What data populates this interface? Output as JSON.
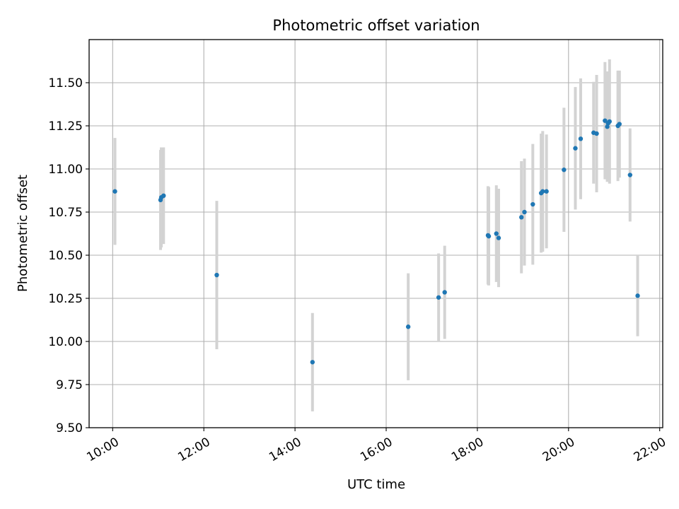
{
  "chart_data": {
    "type": "scatter",
    "title": "Photometric offset variation",
    "xlabel": "UTC time",
    "ylabel": "Photometric offset",
    "xlim": [
      "09:29",
      "22:04"
    ],
    "ylim": [
      9.5,
      11.75
    ],
    "x_ticks": [
      "10:00",
      "12:00",
      "14:00",
      "16:00",
      "18:00",
      "20:00",
      "22:00"
    ],
    "y_ticks": [
      "9.50",
      "9.75",
      "10.00",
      "10.25",
      "10.50",
      "10.75",
      "11.00",
      "11.25",
      "11.50"
    ],
    "grid": true,
    "legend": "none",
    "marker_color": "#1f77b4",
    "errorbar_color": "#d3d3d3",
    "points": [
      {
        "x": "10:03",
        "y": 10.87,
        "err": 0.31
      },
      {
        "x": "11:03",
        "y": 10.82,
        "err": 0.29
      },
      {
        "x": "11:04",
        "y": 10.835,
        "err": 0.29
      },
      {
        "x": "11:07",
        "y": 10.845,
        "err": 0.28
      },
      {
        "x": "12:17",
        "y": 10.385,
        "err": 0.43
      },
      {
        "x": "14:23",
        "y": 9.88,
        "err": 0.285
      },
      {
        "x": "16:29",
        "y": 10.085,
        "err": 0.31
      },
      {
        "x": "17:09",
        "y": 10.255,
        "err": 0.255
      },
      {
        "x": "17:17",
        "y": 10.285,
        "err": 0.27
      },
      {
        "x": "18:14",
        "y": 10.615,
        "err": 0.285
      },
      {
        "x": "18:15",
        "y": 10.61,
        "err": 0.285
      },
      {
        "x": "18:25",
        "y": 10.625,
        "err": 0.28
      },
      {
        "x": "18:28",
        "y": 10.6,
        "err": 0.285
      },
      {
        "x": "18:58",
        "y": 10.72,
        "err": 0.325
      },
      {
        "x": "19:02",
        "y": 10.75,
        "err": 0.31
      },
      {
        "x": "19:13",
        "y": 10.795,
        "err": 0.35
      },
      {
        "x": "19:24",
        "y": 10.86,
        "err": 0.345
      },
      {
        "x": "19:26",
        "y": 10.87,
        "err": 0.35
      },
      {
        "x": "19:31",
        "y": 10.87,
        "err": 0.33
      },
      {
        "x": "19:54",
        "y": 10.995,
        "err": 0.36
      },
      {
        "x": "20:09",
        "y": 11.12,
        "err": 0.355
      },
      {
        "x": "20:16",
        "y": 11.175,
        "err": 0.35
      },
      {
        "x": "20:33",
        "y": 11.21,
        "err": 0.295
      },
      {
        "x": "20:37",
        "y": 11.205,
        "err": 0.34
      },
      {
        "x": "20:48",
        "y": 11.28,
        "err": 0.34
      },
      {
        "x": "20:51",
        "y": 11.245,
        "err": 0.32
      },
      {
        "x": "20:52",
        "y": 11.265,
        "err": 0.3
      },
      {
        "x": "20:54",
        "y": 11.275,
        "err": 0.36
      },
      {
        "x": "21:05",
        "y": 11.25,
        "err": 0.32
      },
      {
        "x": "21:07",
        "y": 11.26,
        "err": 0.31
      },
      {
        "x": "21:21",
        "y": 10.965,
        "err": 0.27
      },
      {
        "x": "21:31",
        "y": 10.265,
        "err": 0.235
      }
    ]
  }
}
